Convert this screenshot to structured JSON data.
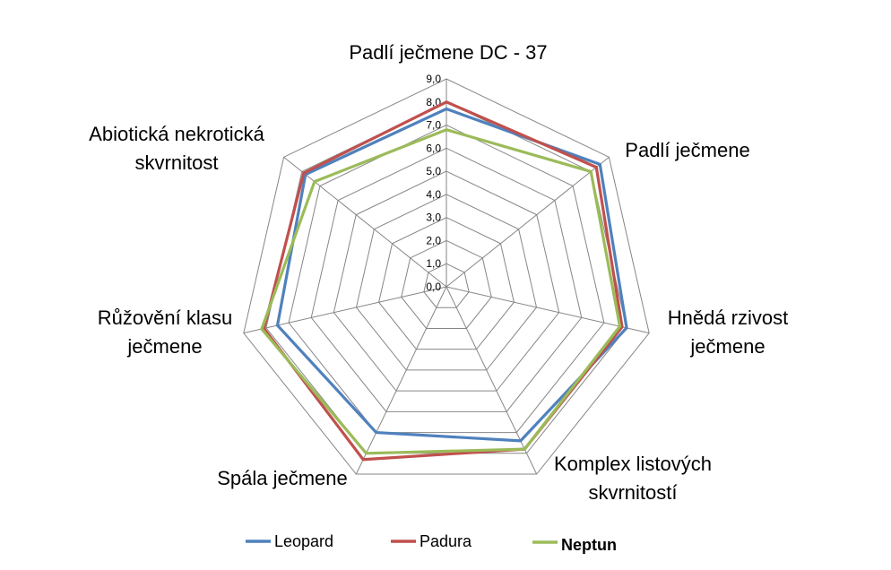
{
  "chart_data": {
    "type": "radar",
    "axes": [
      {
        "label_lines": [
          "Padlí ječmene DC - 37"
        ]
      },
      {
        "label_lines": [
          "Padlí ječmene"
        ]
      },
      {
        "label_lines": [
          "Hnědá rzivost",
          "ječmene"
        ]
      },
      {
        "label_lines": [
          "Komplex listových",
          "skvrnitostí"
        ]
      },
      {
        "label_lines": [
          "Spála ječmene"
        ]
      },
      {
        "label_lines": [
          "Růžovění klasu",
          "ječmene"
        ]
      },
      {
        "label_lines": [
          "Abiotická nekrotická",
          "skvrnitost"
        ]
      }
    ],
    "ticks": [
      "0,0",
      "1,0",
      "2,0",
      "3,0",
      "4,0",
      "5,0",
      "6,0",
      "7,0",
      "8,0",
      "9,0"
    ],
    "rmax": 9,
    "series": [
      {
        "name": "Leopard",
        "color": "#4F81BD",
        "values": [
          7.7,
          8.5,
          8.0,
          7.4,
          7.0,
          7.5,
          7.8
        ]
      },
      {
        "name": "Padura",
        "color": "#C0504D",
        "values": [
          8.0,
          8.3,
          7.8,
          7.8,
          8.3,
          8.1,
          7.9
        ]
      },
      {
        "name": "Neptun",
        "color": "#9BBB59",
        "values": [
          6.8,
          8.0,
          7.7,
          7.8,
          8.0,
          8.2,
          7.3
        ]
      }
    ],
    "legend": {
      "position": "bottom",
      "highlight": "Neptun"
    }
  }
}
